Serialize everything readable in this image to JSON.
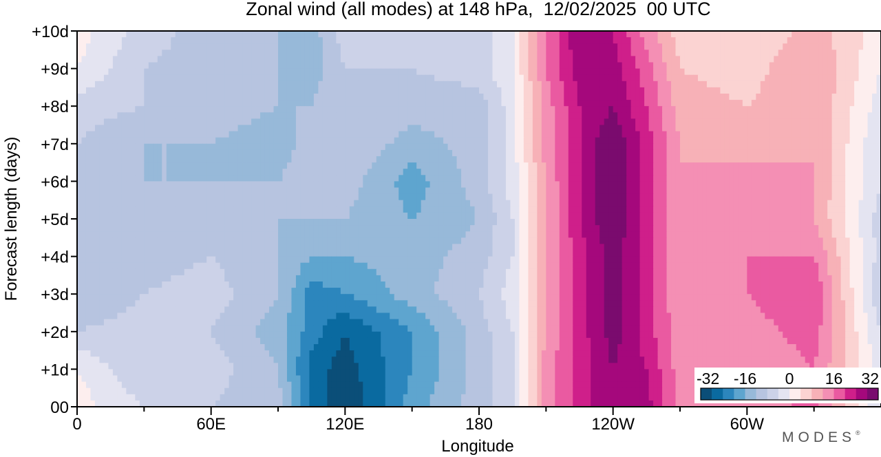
{
  "chart_data": {
    "type": "heatmap",
    "title": "Zonal wind (all modes) at 148 hPa,  12/02/2025  00 UTC",
    "xlabel": "Longitude",
    "ylabel": "Forecast length (days)",
    "x_ticks": [
      {
        "lon": 0,
        "label": "0"
      },
      {
        "lon": 60,
        "label": "60E"
      },
      {
        "lon": 120,
        "label": "120E"
      },
      {
        "lon": 180,
        "label": "180"
      },
      {
        "lon": 240,
        "label": "120W"
      },
      {
        "lon": 300,
        "label": "60W"
      }
    ],
    "x_minor_ticks": [
      30,
      90,
      150,
      210,
      270,
      330
    ],
    "xlim": [
      0,
      360
    ],
    "y_ticks": [
      {
        "day": 0,
        "label": "00"
      },
      {
        "day": 1,
        "label": "+1d"
      },
      {
        "day": 2,
        "label": "+2d"
      },
      {
        "day": 3,
        "label": "+3d"
      },
      {
        "day": 4,
        "label": "+4d"
      },
      {
        "day": 5,
        "label": "+5d"
      },
      {
        "day": 6,
        "label": "+6d"
      },
      {
        "day": 7,
        "label": "+7d"
      },
      {
        "day": 8,
        "label": "+8d"
      },
      {
        "day": 9,
        "label": "+9d"
      },
      {
        "day": 10,
        "label": "+10d"
      }
    ],
    "ylim": [
      0,
      10
    ],
    "colorbar": {
      "tick_labels": [
        "-32",
        "-16",
        "0",
        "16",
        "32"
      ],
      "levels": [
        -32,
        -28,
        -24,
        -20,
        -16,
        -12,
        -8,
        -4,
        0,
        4,
        8,
        12,
        16,
        20,
        24,
        28,
        32
      ],
      "colors": [
        "#0b4e78",
        "#0a6aa0",
        "#2c86bd",
        "#5ea5cf",
        "#97b9d9",
        "#b7c4e0",
        "#ccd2e8",
        "#e4e4f1",
        "#fdeeee",
        "#fbd3d2",
        "#f7b1b7",
        "#f48fb4",
        "#ea5aa1",
        "#cf1f8a",
        "#a5087c",
        "#7a0b6e"
      ],
      "placement": "lower-right"
    },
    "lon_grid": [
      0,
      30,
      60,
      90,
      105,
      120,
      150,
      180,
      195,
      210,
      225,
      240,
      255,
      270,
      300,
      330,
      360
    ],
    "day_grid": [
      0,
      1,
      2,
      3,
      4,
      5,
      6,
      7,
      8,
      9,
      10
    ],
    "u_wind": [
      [
        2,
        -4,
        -8,
        -10,
        -24,
        -32,
        -18,
        -10,
        -4,
        14,
        22,
        28,
        26,
        14,
        12,
        18,
        -4
      ],
      [
        0,
        -8,
        -6,
        -12,
        -26,
        -30,
        -20,
        -10,
        -4,
        14,
        22,
        28,
        24,
        14,
        12,
        16,
        -2
      ],
      [
        -8,
        -6,
        -8,
        -14,
        -22,
        -28,
        -20,
        -10,
        -4,
        12,
        22,
        30,
        22,
        14,
        14,
        18,
        -4
      ],
      [
        -12,
        -8,
        -6,
        -12,
        -22,
        -20,
        -14,
        -8,
        -2,
        12,
        22,
        30,
        22,
        12,
        16,
        20,
        -8
      ],
      [
        -12,
        -10,
        -8,
        -12,
        -16,
        -16,
        -14,
        -10,
        -4,
        12,
        22,
        30,
        22,
        12,
        16,
        16,
        -6
      ],
      [
        -10,
        -10,
        -10,
        -12,
        -12,
        -12,
        -16,
        -12,
        -4,
        12,
        24,
        32,
        22,
        12,
        14,
        12,
        -6
      ],
      [
        -10,
        -12,
        -12,
        -12,
        -10,
        -10,
        -18,
        -10,
        -2,
        12,
        24,
        32,
        22,
        12,
        14,
        12,
        -4
      ],
      [
        -8,
        -12,
        -12,
        -14,
        -10,
        -8,
        -14,
        -10,
        -2,
        14,
        24,
        32,
        22,
        12,
        10,
        12,
        -4
      ],
      [
        -6,
        -8,
        -10,
        -12,
        -12,
        -8,
        -10,
        -10,
        -2,
        14,
        24,
        28,
        20,
        10,
        8,
        12,
        -2
      ],
      [
        0,
        -8,
        -10,
        -12,
        -14,
        -8,
        -8,
        -6,
        0,
        16,
        26,
        26,
        18,
        8,
        6,
        12,
        0
      ],
      [
        2,
        -6,
        -10,
        -12,
        -14,
        -6,
        -6,
        -6,
        0,
        16,
        28,
        24,
        14,
        6,
        4,
        10,
        2
      ]
    ]
  },
  "brand": {
    "text": "MODES",
    "mark": "®"
  }
}
